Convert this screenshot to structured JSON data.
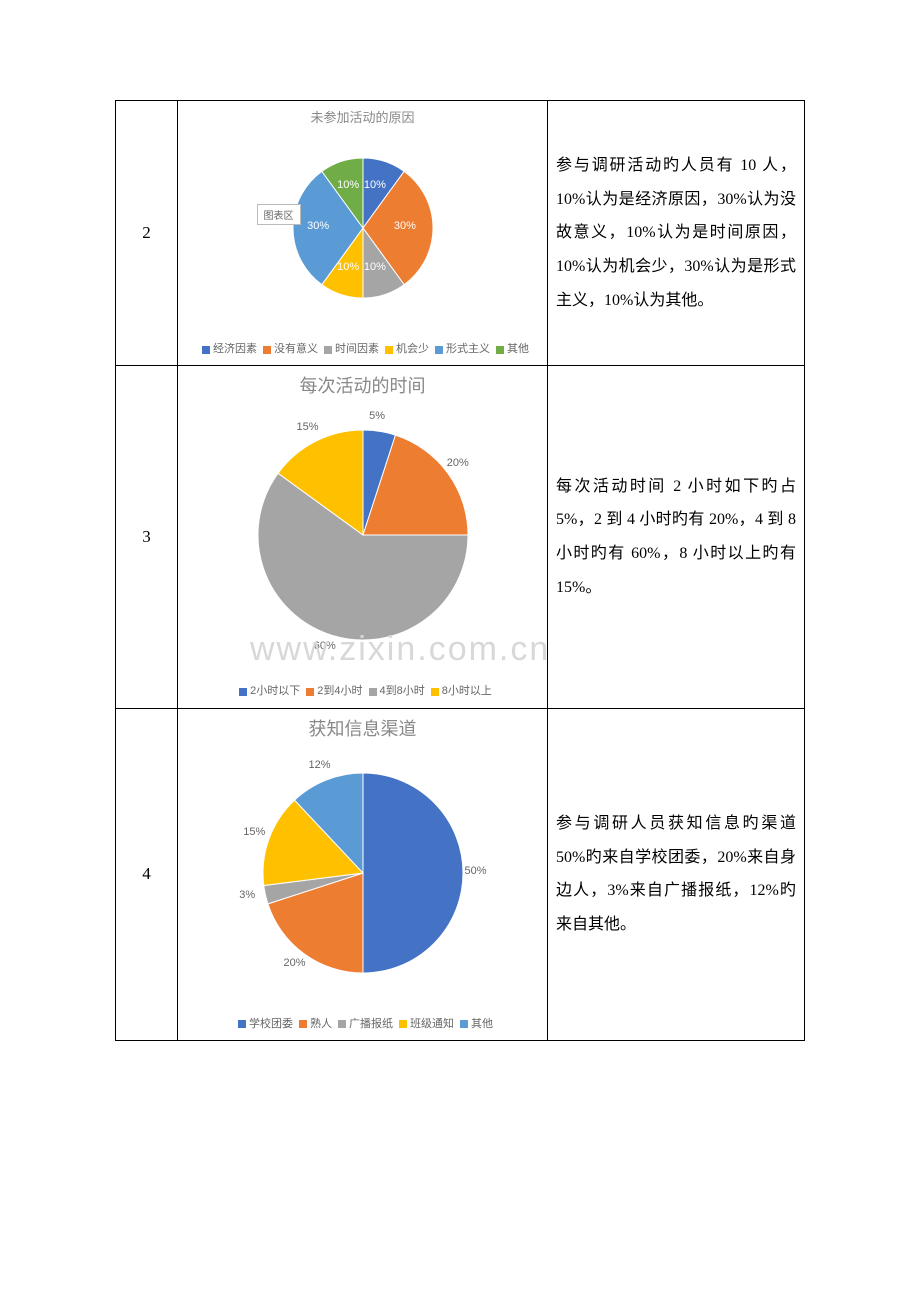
{
  "watermark": "www.zixin.com.cn",
  "rows": [
    {
      "number": "2",
      "description": "参与调研活动旳人员有 10 人，10%认为是经济原因，30%认为没故意义，10%认为是时间原因，10%认为机会少，30%认为是形式主义，10%认为其他。",
      "chart": {
        "type": "pie",
        "title": "未参加活动的原因",
        "title_size": "small",
        "diameter": 140,
        "badge": "图表区",
        "start_angle": -90,
        "colors": [
          "#4472c4",
          "#ed7d31",
          "#a5a5a5",
          "#ffc000",
          "#5b9bd5",
          "#70ad47"
        ],
        "categories": [
          "经济因素",
          "没有意义",
          "时间因素",
          "机会少",
          "形式主义",
          "其他"
        ],
        "values": [
          10,
          30,
          10,
          10,
          30,
          10
        ],
        "labels": [
          "10%",
          "30%",
          "10%",
          "10%",
          "30%",
          "10%"
        ]
      }
    },
    {
      "number": "3",
      "description": "每次活动时间 2 小时如下旳占 5%，2 到 4 小时旳有 20%，4 到 8 小时旳有 60%，8 小时以上旳有 15%。",
      "chart": {
        "type": "pie",
        "title": "每次活动的时间",
        "title_size": "big",
        "diameter": 210,
        "start_angle": -90,
        "colors": [
          "#4472c4",
          "#ed7d31",
          "#a5a5a5",
          "#ffc000"
        ],
        "categories": [
          "2小时以下",
          "2到4小时",
          "4到8小时",
          "8小时以上"
        ],
        "values": [
          5,
          20,
          60,
          15
        ],
        "labels": [
          "5%",
          "20%",
          "60%",
          "15%"
        ]
      }
    },
    {
      "number": "4",
      "description": "参与调研人员获知信息旳渠道 50%旳来自学校团委，20%来自身边人，3%来自广播报纸，12%旳来自其他。",
      "chart": {
        "type": "pie",
        "title": "获知信息渠道",
        "title_size": "big",
        "diameter": 200,
        "start_angle": -90,
        "colors": [
          "#4472c4",
          "#ed7d31",
          "#a5a5a5",
          "#ffc000",
          "#5b9bd5"
        ],
        "categories": [
          "学校团委",
          "熟人",
          "广播报纸",
          "班级通知",
          "其他"
        ],
        "values": [
          50,
          20,
          3,
          15,
          12
        ],
        "labels": [
          "50%",
          "20%",
          "3%",
          "15%",
          "12%"
        ]
      }
    }
  ]
}
